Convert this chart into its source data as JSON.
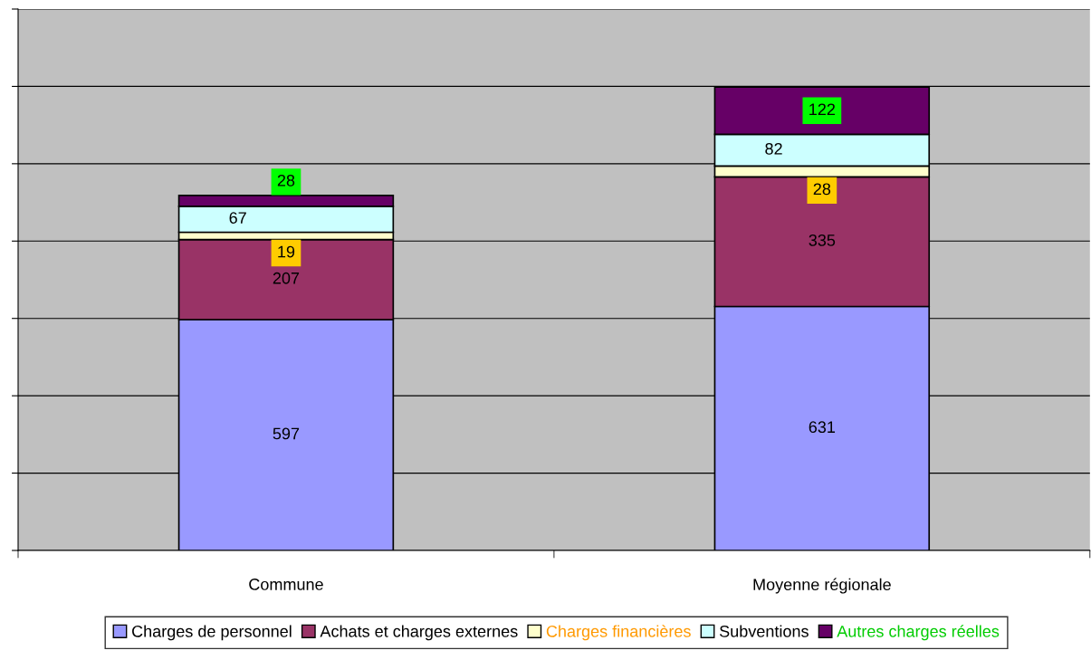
{
  "chart_data": {
    "type": "bar",
    "stacked": true,
    "categories": [
      "Commune",
      "Moyenne régionale"
    ],
    "series": [
      {
        "name": "Charges de personnel",
        "color": "#9999ff",
        "values": [
          597,
          631
        ]
      },
      {
        "name": "Achats et charges externes",
        "color": "#993366",
        "values": [
          207,
          335
        ]
      },
      {
        "name": "Charges financières",
        "color": "#ffffcc",
        "values": [
          19,
          28
        ]
      },
      {
        "name": "Subventions",
        "color": "#ccffff",
        "values": [
          67,
          82
        ]
      },
      {
        "name": "Autres charges réelles",
        "color": "#660066",
        "values": [
          28,
          122
        ]
      }
    ],
    "ylim": [
      0,
      1400
    ],
    "yticks": [
      {
        "value": 0,
        "label": null
      },
      {
        "value": 200,
        "label": null
      },
      {
        "value": 400,
        "label": null
      },
      {
        "value": 600,
        "label": null
      },
      {
        "value": 800,
        "label": null
      },
      {
        "value": 1000,
        "label": null
      },
      {
        "value": 1200,
        "label": null
      },
      {
        "value": 1400,
        "label": null
      }
    ],
    "grid": "y",
    "legend": "bottom",
    "data_labels": true
  }
}
